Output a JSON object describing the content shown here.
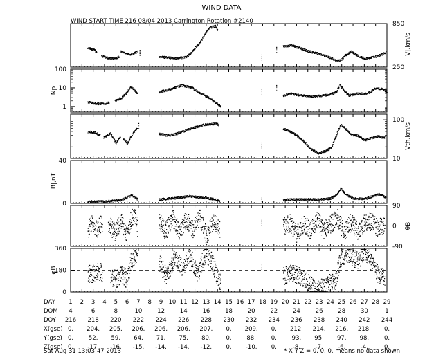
{
  "chart_data": {
    "type": "scatter",
    "title": "WIND DATA",
    "subtitle": "WIND START TIME 216 08/04 2013 Carrington Rotation #2140",
    "footer_left": "Sat Aug 31 13:03:47 2013",
    "footer_right": "* X Y Z = 0. 0. 0. means no data shown",
    "x_ticks": [
      "1",
      "2",
      "3",
      "4",
      "5",
      "6",
      "7",
      "8",
      "9",
      "10",
      "11",
      "12",
      "13",
      "14",
      "15",
      "16",
      "17",
      "18",
      "19",
      "20",
      "21",
      "22",
      "23",
      "24",
      "25",
      "26",
      "27",
      "28",
      "29"
    ],
    "panels": [
      {
        "id": "speed",
        "label_right": "|V|,km/s",
        "ylim": [
          250,
          850
        ],
        "ticks_right": [
          "850",
          "250"
        ],
        "ticks_left": [],
        "series": [
          {
            "x": [
              2.45,
              3.0,
              3.3
            ],
            "y": [
              520,
              500,
              460
            ]
          },
          {
            "x": [
              3.7,
              4.3,
              4.9,
              5.3
            ],
            "y": [
              410,
              380,
              375,
              400
            ]
          },
          {
            "x": [
              5.4,
              6.0,
              6.4,
              6.9
            ],
            "y": [
              470,
              440,
              430,
              470
            ]
          },
          {
            "x": [
              8.8,
              9.6,
              10.4,
              11.2,
              11.6,
              12.0,
              12.5,
              12.9,
              13.3,
              13.8,
              14.0
            ],
            "y": [
              400,
              385,
              375,
              395,
              440,
              520,
              610,
              720,
              800,
              820,
              760
            ]
          },
          {
            "x": [
              19.8,
              20.5,
              21.2,
              22.0,
              22.8,
              23.5,
              24.0,
              24.5,
              24.9,
              25.3,
              25.8,
              26.4,
              27.0,
              27.6,
              28.3,
              28.9
            ],
            "y": [
              540,
              555,
              520,
              475,
              445,
              410,
              380,
              345,
              345,
              420,
              470,
              410,
              375,
              385,
              415,
              455
            ]
          }
        ],
        "gaps": [
          {
            "x": 7.1,
            "y": 450
          },
          {
            "x": 17.9,
            "y": 385
          },
          {
            "x": 19.2,
            "y": 490
          }
        ]
      },
      {
        "id": "density",
        "label_left": "Np",
        "ylim": [
          0.5,
          100
        ],
        "scale": "log",
        "ticks_left": [
          "100",
          "10",
          "1"
        ],
        "tick_values_left": [
          100,
          10,
          1
        ],
        "series": [
          {
            "x": [
              2.5,
              3.2,
              3.9,
              4.4
            ],
            "y": [
              1.8,
              1.5,
              1.4,
              1.7
            ]
          },
          {
            "x": [
              4.9,
              5.5,
              6.0,
              6.3,
              6.6,
              6.9
            ],
            "y": [
              2.2,
              3.0,
              6.0,
              12,
              8.0,
              5.0
            ]
          },
          {
            "x": [
              8.8,
              9.8,
              10.8,
              11.5,
              12.3,
              13.0,
              13.6,
              14.0,
              14.3
            ],
            "y": [
              6.0,
              9.0,
              14,
              12,
              6.0,
              3.5,
              2.0,
              1.4,
              1.0
            ]
          },
          {
            "x": [
              19.8,
              20.5,
              21.5,
              22.3,
              23.2,
              23.9,
              24.5,
              24.8,
              25.2,
              25.6,
              26.3,
              27.0,
              27.5,
              28.0,
              28.6,
              29.0
            ],
            "y": [
              4.0,
              5.0,
              4.0,
              3.5,
              4.0,
              4.5,
              6.0,
              14,
              7.0,
              4.0,
              5.0,
              5.0,
              6.0,
              10,
              9.0,
              6.0
            ]
          }
        ],
        "gaps": [
          {
            "x": 17.9,
            "y": 6.0
          },
          {
            "x": 19.2,
            "y": 10
          }
        ]
      },
      {
        "id": "thermal",
        "label_right": "Vth,km/s",
        "ylim": [
          10,
          140
        ],
        "scale": "log",
        "ticks_right": [
          "100",
          "10"
        ],
        "tick_values_right": [
          100,
          10
        ],
        "series": [
          {
            "x": [
              2.5,
              3.1,
              3.6
            ],
            "y": [
              50,
              48,
              40
            ]
          },
          {
            "x": [
              3.9,
              4.5,
              5.0,
              5.4
            ],
            "y": [
              35,
              45,
              25,
              38
            ]
          },
          {
            "x": [
              5.6,
              6.0,
              6.4,
              6.9
            ],
            "y": [
              33,
              25,
              40,
              65
            ]
          },
          {
            "x": [
              8.8,
              9.6,
              10.4,
              11.2,
              12.0,
              12.7,
              13.3,
              13.9,
              14.1
            ],
            "y": [
              45,
              40,
              45,
              55,
              65,
              75,
              80,
              80,
              75
            ]
          },
          {
            "x": [
              19.8,
              20.6,
              21.4,
              22.2,
              22.9,
              23.6,
              24.1,
              24.5,
              24.9,
              25.3,
              25.8,
              26.4,
              27.0,
              27.6,
              28.2,
              28.8
            ],
            "y": [
              60,
              48,
              32,
              18,
              14,
              16,
              20,
              40,
              75,
              60,
              42,
              40,
              30,
              35,
              38,
              35
            ]
          }
        ],
        "gaps": [
          {
            "x": 17.9,
            "y": 22
          },
          {
            "x": 7.0,
            "y": 70
          }
        ]
      },
      {
        "id": "bfield",
        "label_left": "|B|,nT",
        "ylim": [
          0,
          40
        ],
        "ticks_left": [
          "40",
          "0"
        ],
        "tick_values_left": [
          40,
          0
        ],
        "series": [
          {
            "x": [
              2.5,
              3.5,
              4.5,
              5.5,
              6.0,
              6.4,
              6.9
            ],
            "y": [
              2.0,
              2.0,
              2.5,
              3.5,
              6.0,
              8.0,
              4.0
            ]
          },
          {
            "x": [
              8.8,
              10.0,
              11.5,
              12.5,
              13.2,
              13.8,
              14.2
            ],
            "y": [
              4.0,
              5.0,
              7.0,
              6.0,
              5.0,
              4.0,
              2.5
            ]
          },
          {
            "x": [
              19.8,
              20.8,
              22.0,
              23.0,
              24.0,
              24.6,
              24.9,
              25.3,
              26.0,
              27.0,
              27.7,
              28.3,
              28.9
            ],
            "y": [
              3.5,
              4.0,
              4.0,
              4.0,
              5.0,
              9.0,
              14,
              9.0,
              5.0,
              4.5,
              7.0,
              9.0,
              6.0
            ]
          }
        ],
        "gaps": [
          {
            "x": 17.9,
            "y": 3.0
          }
        ]
      },
      {
        "id": "theta",
        "label_right": "θB",
        "ylim": [
          -90,
          90
        ],
        "ticks_right": [
          "90",
          "0",
          "-90"
        ],
        "tick_values_right": [
          90,
          0,
          -90
        ],
        "dashed_zero": 0,
        "series": [
          {
            "x": [
              2.5,
              2.9,
              3.3,
              3.8
            ],
            "y": [
              -20,
              20,
              -10,
              15
            ]
          },
          {
            "x": [
              4.3,
              4.9,
              5.4,
              6.0,
              6.3,
              6.6,
              6.9
            ],
            "y": [
              10,
              -25,
              20,
              -40,
              30,
              60,
              -10
            ]
          },
          {
            "x": [
              8.8,
              9.4,
              10.0,
              10.6,
              11.2,
              11.8,
              12.4,
              13.0,
              13.6,
              14.2
            ],
            "y": [
              20,
              -20,
              40,
              -30,
              30,
              -15,
              35,
              -40,
              20,
              -10
            ]
          },
          {
            "x": [
              19.8,
              20.4,
              21.0,
              21.6,
              22.2,
              22.8,
              23.4,
              24.0,
              24.6,
              25.2,
              25.8,
              26.4,
              27.0,
              27.6,
              28.2,
              28.8
            ],
            "y": [
              -5,
              15,
              -35,
              10,
              -20,
              25,
              -15,
              10,
              35,
              -30,
              20,
              -25,
              15,
              20,
              -10,
              10
            ]
          }
        ],
        "gaps": [
          {
            "x": 17.9,
            "y": 15
          }
        ]
      },
      {
        "id": "phi",
        "label_left": "φB",
        "ylim": [
          0,
          360
        ],
        "ticks_left": [
          "360",
          "180",
          "0"
        ],
        "tick_values_left": [
          360,
          180,
          0
        ],
        "dashed_zero": 180,
        "series": [
          {
            "x": [
              2.5,
              3.0,
              3.4,
              3.8
            ],
            "y": [
              160,
              150,
              175,
              160
            ]
          },
          {
            "x": [
              4.5,
              5.0,
              5.5,
              6.0,
              6.3,
              6.6,
              6.9
            ],
            "y": [
              120,
              110,
              150,
              100,
              250,
              300,
              320
            ]
          },
          {
            "x": [
              8.8,
              9.5,
              10.2,
              10.9,
              11.5,
              12.2,
              12.8,
              13.4,
              14.0,
              14.3
            ],
            "y": [
              250,
              120,
              300,
              200,
              320,
              150,
              300,
              270,
              120,
              60
            ]
          },
          {
            "x": [
              19.8,
              20.4,
              21.0,
              21.6,
              22.2,
              22.7,
              23.2,
              23.8,
              24.4,
              24.9,
              25.3,
              25.8,
              26.4,
              27.0,
              27.6,
              28.2,
              28.8
            ],
            "y": [
              130,
              160,
              140,
              120,
              60,
              20,
              40,
              70,
              100,
              280,
              310,
              300,
              260,
              340,
              240,
              150,
              110
            ]
          }
        ],
        "gaps": [
          {
            "x": 17.9,
            "y": 210
          }
        ]
      }
    ],
    "table": {
      "rows": [
        {
          "label": "DAY",
          "values": [
            "1",
            "2",
            "3",
            "4",
            "5",
            "6",
            "7",
            "8",
            "9",
            "10",
            "11",
            "12",
            "13",
            "14",
            "15",
            "16",
            "17",
            "18",
            "19",
            "20",
            "21",
            "22",
            "23",
            "24",
            "25",
            "26",
            "27",
            "28",
            "29"
          ],
          "step": 1
        },
        {
          "label": "DOM",
          "values": [
            "4",
            "6",
            "8",
            "10",
            "12",
            "14",
            "16",
            "18",
            "20",
            "22",
            "24",
            "26",
            "28",
            "30",
            "1"
          ],
          "step": 2
        },
        {
          "label": "DOY",
          "values": [
            "216",
            "218",
            "220",
            "222",
            "224",
            "226",
            "228",
            "230",
            "232",
            "234",
            "236",
            "238",
            "240",
            "242",
            "244"
          ],
          "step": 2
        },
        {
          "label": "X(gse)",
          "values": [
            "0.",
            "204.",
            "205.",
            "206.",
            "206.",
            "206.",
            "207.",
            "0.",
            "209.",
            "0.",
            "212.",
            "214.",
            "216.",
            "218.",
            "0."
          ],
          "step": 2
        },
        {
          "label": "Y(gse)",
          "values": [
            "0.",
            "52.",
            "59.",
            "64.",
            "71.",
            "75.",
            "80.",
            "0.",
            "88.",
            "0.",
            "93.",
            "95.",
            "97.",
            "98.",
            "0."
          ],
          "step": 2
        },
        {
          "label": "Z(gse)",
          "values": [
            "0.",
            "-17.",
            "-16.",
            "-15.",
            "-14.",
            "-14.",
            "-12.",
            "0.",
            "-10.",
            "0.",
            "-8.",
            "-7.",
            "-6.",
            "-4.",
            "0."
          ],
          "step": 2
        }
      ]
    }
  }
}
